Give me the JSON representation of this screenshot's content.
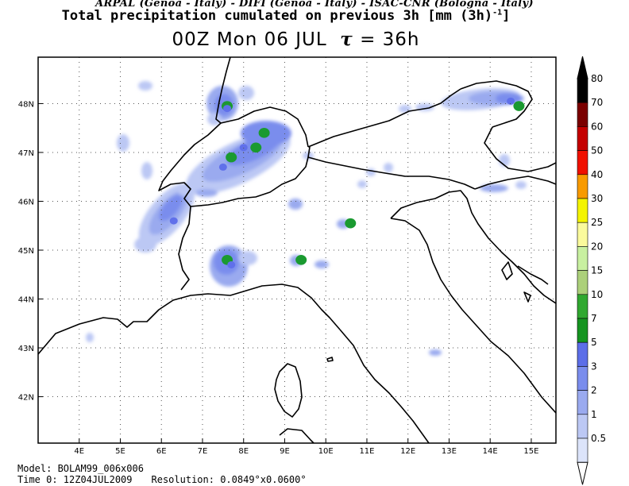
{
  "header": {
    "credits": "ARPAL (Genoa - Italy)  -  DIFI (Genoa - Italy)  -  ISAC-CNR (Bologna - Italy)",
    "title": "Total precipitation cumulated on previous 3h [mm (3h)",
    "title_exponent": "-1",
    "title_suffix": "]",
    "valid_time": "00Z Mon 06 JUL",
    "tau_symbol": "τ",
    "lead_time": "= 36h"
  },
  "map": {
    "lon_labels": [
      "4E",
      "5E",
      "6E",
      "7E",
      "8E",
      "9E",
      "10E",
      "11E",
      "12E",
      "13E",
      "14E",
      "15E"
    ],
    "lat_labels": [
      "48N",
      "47N",
      "46N",
      "45N",
      "44N",
      "43N",
      "42N"
    ],
    "lon_values": [
      4,
      5,
      6,
      7,
      8,
      9,
      10,
      11,
      12,
      13,
      14,
      15
    ],
    "lat_values": [
      48,
      47,
      46,
      45,
      44,
      43,
      42
    ],
    "lon_range": [
      3.0,
      15.6
    ],
    "lat_range": [
      41.05,
      48.95
    ],
    "gridlines": "dotted",
    "precip_cells": [
      {
        "lon": 7.6,
        "lat": 47.95,
        "level": "7"
      },
      {
        "lon": 7.6,
        "lat": 47.9,
        "level": "3"
      },
      {
        "lon": 8.5,
        "lat": 47.4,
        "level": "7"
      },
      {
        "lon": 8.3,
        "lat": 47.1,
        "level": "7"
      },
      {
        "lon": 7.7,
        "lat": 46.9,
        "level": "7"
      },
      {
        "lon": 8.0,
        "lat": 47.1,
        "level": "3"
      },
      {
        "lon": 7.5,
        "lat": 46.7,
        "level": "3"
      },
      {
        "lon": 6.3,
        "lat": 45.6,
        "level": "3"
      },
      {
        "lon": 7.6,
        "lat": 44.8,
        "level": "7"
      },
      {
        "lon": 7.7,
        "lat": 44.7,
        "level": "3"
      },
      {
        "lon": 9.4,
        "lat": 44.8,
        "level": "7"
      },
      {
        "lon": 10.6,
        "lat": 45.55,
        "level": "7"
      },
      {
        "lon": 14.7,
        "lat": 47.95,
        "level": "7"
      },
      {
        "lon": 14.5,
        "lat": 48.05,
        "level": "3"
      }
    ],
    "colors": {
      "level_0_5": "#dce4fa",
      "level_1": "#bcc8f4",
      "level_2": "#9aaaef",
      "level_3": "#7a8ded",
      "level_5": "#6070ea",
      "level_7": "#1a9a30"
    }
  },
  "legend": {
    "levels": [
      "80",
      "70",
      "60",
      "50",
      "40",
      "30",
      "25",
      "20",
      "15",
      "10",
      "7",
      "5",
      "3",
      "2",
      "1",
      "0.5"
    ],
    "colors": [
      "#000000",
      "#7a0000",
      "#c40000",
      "#f01000",
      "#f89a00",
      "#f4f400",
      "#fafa9c",
      "#c8f0a0",
      "#acd07a",
      "#30a830",
      "#159420",
      "#5c6ee8",
      "#7a8ded",
      "#9aaaef",
      "#bcc8f4",
      "#dce4fa"
    ]
  },
  "footer": {
    "model": "Model: BOLAM99_006x006",
    "time0": "Time 0: 12Z04JUL2009",
    "resolution": "Resolution: 0.0849°x0.0600°"
  }
}
